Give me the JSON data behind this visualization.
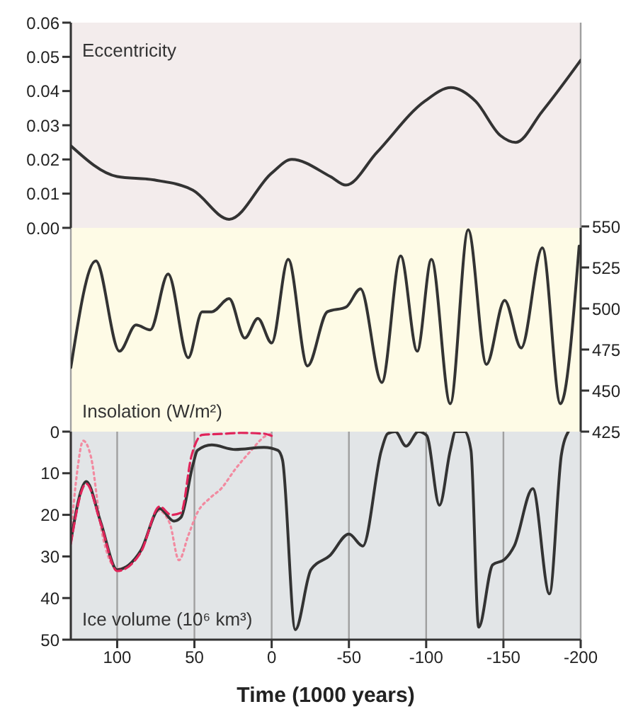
{
  "chart_data": [
    {
      "type": "line",
      "annotations": [
        "Eccentricity"
      ],
      "xlim": [
        130,
        -200
      ],
      "xticks": [
        100,
        50,
        0,
        -50,
        -100,
        -150,
        -200
      ],
      "ylim": [
        0,
        0.06
      ],
      "yticks": [
        {
          "value": 0,
          "label": "0.00"
        },
        0.01,
        0.02,
        0.03,
        0.04,
        0.05,
        0.06
      ],
      "tick_labels": "y",
      "grid": "x",
      "marker": "none",
      "series": [
        {
          "color": "#333333",
          "line_style": "solid",
          "x": [
            130,
            100,
            76,
            51,
            27.5,
            0,
            -13,
            -38,
            -48,
            -68,
            -99,
            -116,
            -132,
            -148,
            -158,
            -175,
            -200
          ],
          "values": [
            0.024,
            0.015,
            0.014,
            0.011,
            0.0025,
            0.016,
            0.02,
            0.015,
            0.0125,
            0.022,
            0.037,
            0.041,
            0.037,
            0.027,
            0.025,
            0.034,
            0.049
          ]
        }
      ]
    },
    {
      "type": "line",
      "annotations": [
        "Insolation (W/m²)"
      ],
      "xlim": [
        130,
        -200
      ],
      "xticks": [
        100,
        50,
        0,
        -50,
        -100,
        -150,
        -200
      ],
      "ylim": [
        425,
        550
      ],
      "yticks": [
        425,
        450,
        475,
        500,
        525,
        550
      ],
      "tick_labels": "y",
      "grid": "x",
      "marker": "none",
      "series": [
        {
          "color": "#333333",
          "line_style": "solid",
          "x": [
            130,
            113.8,
            98.5,
            87.8,
            78.6,
            67,
            54,
            45,
            38.8,
            27.5,
            17.4,
            8.9,
            0,
            -10.7,
            -23.2,
            -36,
            -48.3,
            -57.5,
            -71.3,
            -83.5,
            -94.2,
            -103.4,
            -115.6,
            -127.2,
            -139,
            -150.8,
            -161.5,
            -175.2,
            -186.9,
            -199
          ],
          "values": [
            464,
            529,
            474,
            490,
            487,
            521,
            470,
            498,
            498,
            506,
            482,
            494,
            479,
            530,
            465,
            498,
            501,
            512,
            455,
            532,
            474,
            530,
            442,
            548,
            466,
            505,
            476,
            537,
            442,
            538
          ]
        }
      ]
    },
    {
      "type": "line",
      "annotations": [
        "Ice volume (10⁶ km³)"
      ],
      "xlabel": "Time (1000 years)",
      "xlim": [
        130,
        -200
      ],
      "xticks": [
        100,
        50,
        0,
        -50,
        -100,
        -150,
        -200
      ],
      "ylim": [
        50,
        0
      ],
      "yticks": [
        0,
        10,
        20,
        30,
        40,
        50
      ],
      "grid": "x",
      "marker": "none",
      "series": [
        {
          "color": "#f28aa0",
          "line_style": "dotted",
          "x": [
            130,
            126,
            122,
            117,
            110,
            100,
            85,
            73,
            66,
            60,
            54,
            48,
            40,
            32.7,
            23.5,
            14.4,
            3.7,
            0
          ],
          "values": [
            25,
            10,
            2.2,
            6,
            24,
            33,
            29,
            19,
            22,
            30.9,
            25,
            19.4,
            16,
            13.7,
            9,
            5,
            1,
            0.5
          ]
        },
        {
          "color": "#333333",
          "line_style": "solid",
          "x": [
            130,
            120,
            110.7,
            100,
            84.7,
            72.5,
            63.3,
            58.7,
            51,
            48,
            38.8,
            23.5,
            5,
            -4,
            -7,
            -15.3,
            -25.4,
            -37.6,
            -50,
            -59,
            -71,
            -75,
            -80,
            -87,
            -95,
            -100.3,
            -108.6,
            -115.6,
            -119,
            -125,
            -129,
            -134,
            -143,
            -150.8,
            -157,
            -169,
            -179.8,
            -187.5,
            -192
          ],
          "values": [
            26.3,
            12,
            21.7,
            33.2,
            28.6,
            18.5,
            21.5,
            20.6,
            8,
            4.5,
            3.2,
            4.3,
            3.8,
            4.5,
            6.8,
            47.6,
            33.2,
            29.8,
            24.6,
            27.5,
            4.5,
            0.5,
            0,
            3.5,
            0,
            0.9,
            17.7,
            4.5,
            0,
            0,
            4.5,
            47,
            32,
            30.7,
            27.5,
            13.7,
            39,
            5.6,
            0
          ]
        },
        {
          "color": "#e0245a",
          "line_style": "dashed",
          "x": [
            130,
            120,
            110.7,
            100,
            84.7,
            72.5,
            65,
            58.7,
            52,
            45,
            30,
            20,
            5,
            0
          ],
          "values": [
            27,
            12.5,
            22,
            33.5,
            29,
            18,
            20,
            19.5,
            6,
            0.8,
            0.5,
            0.3,
            0.5,
            1
          ]
        }
      ]
    }
  ]
}
